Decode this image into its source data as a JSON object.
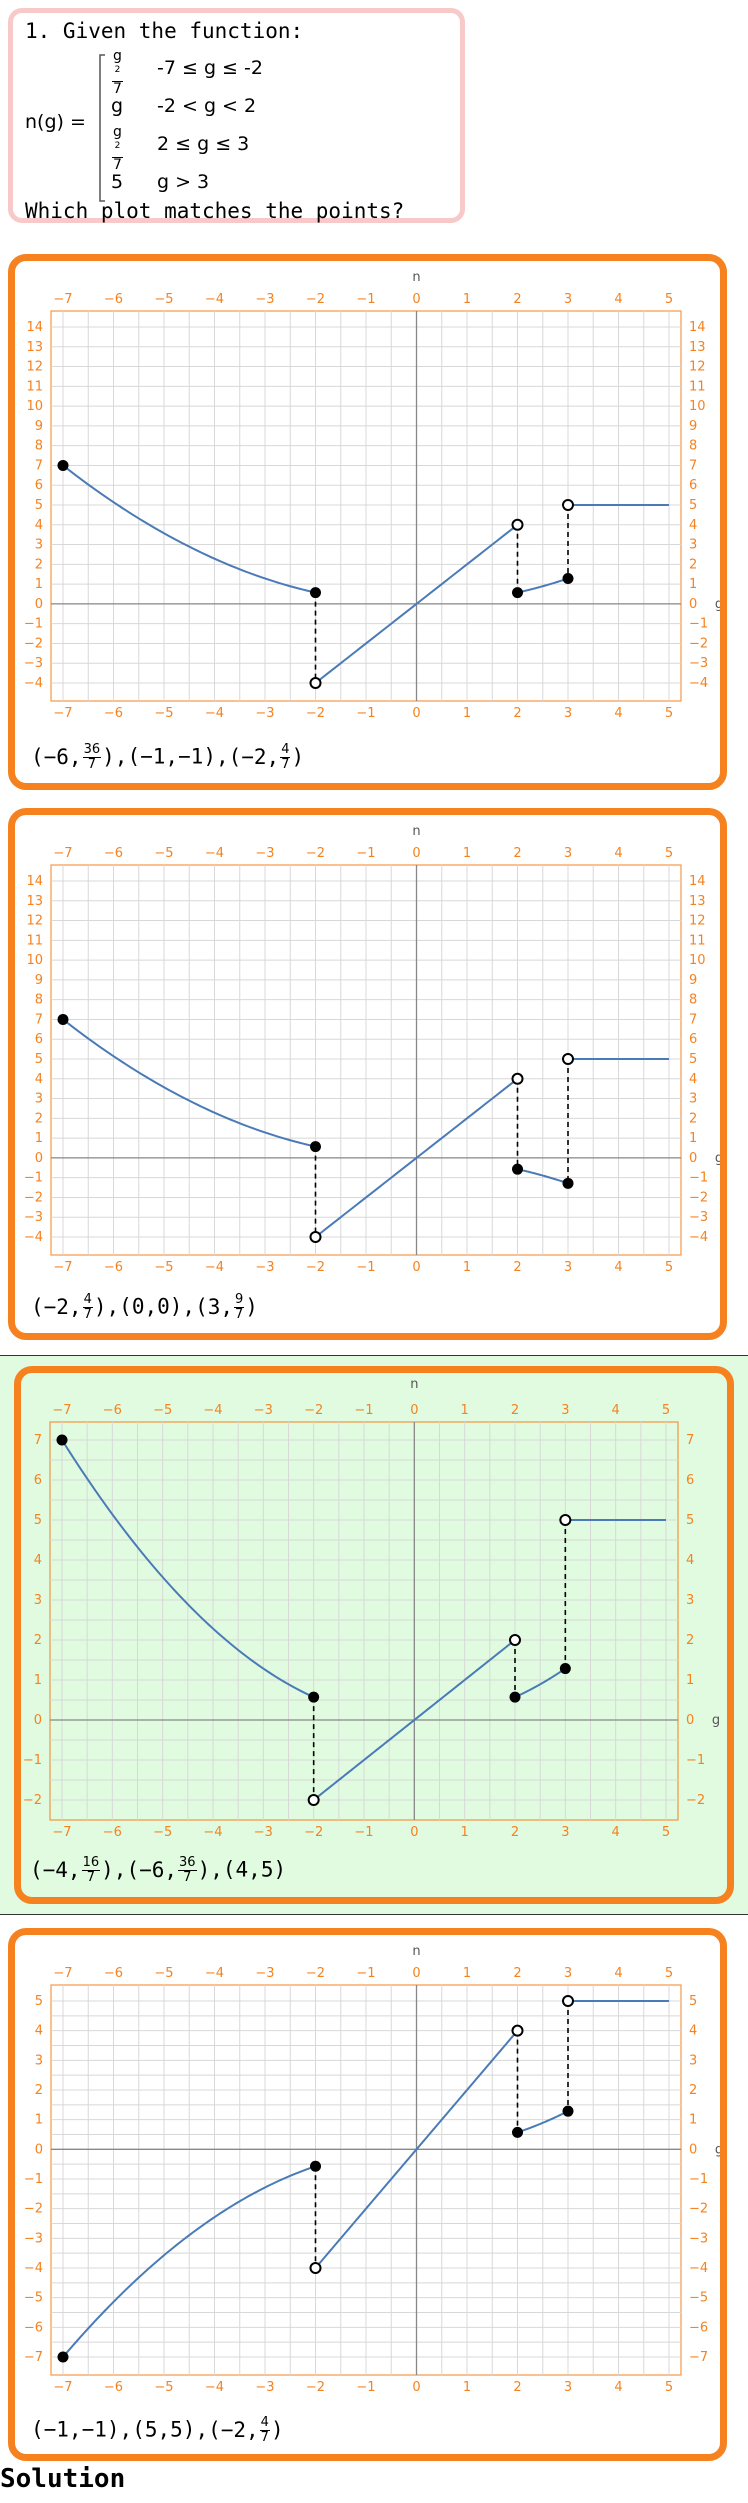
{
  "question": {
    "intro": "1. Given the function:",
    "func_name": "n(g) =",
    "cases": [
      {
        "expr_num": "g",
        "expr_sup": "2",
        "expr_den": "7",
        "cond": "-7 ≤ g ≤ -2"
      },
      {
        "expr": "g",
        "cond": "-2 < g < 2"
      },
      {
        "expr_num": "g",
        "expr_sup": "2",
        "expr_den": "7",
        "cond": "2 ≤ g ≤ 3"
      },
      {
        "expr": "5",
        "cond": "g > 3"
      }
    ],
    "prompt": "Which plot matches the points?"
  },
  "axis_labels": {
    "x": "g",
    "y": "n"
  },
  "solution_label": "Solution",
  "options": [
    {
      "correct": false,
      "points": [
        {
          "x": "-6",
          "num": "36",
          "den": "7"
        },
        {
          "x": "-1",
          "y": "-1"
        },
        {
          "x": "-2",
          "num": "4",
          "den": "7"
        }
      ],
      "chart_data": {
        "type": "line",
        "xlim": [
          -7,
          5
        ],
        "ylim": [
          -4,
          14
        ],
        "xticks": [
          -7,
          -6,
          -5,
          -4,
          -3,
          -2,
          -1,
          0,
          1,
          2,
          3,
          4,
          5
        ],
        "yticks": [
          -4,
          -3,
          -2,
          -1,
          0,
          1,
          2,
          3,
          4,
          5,
          6,
          7,
          8,
          9,
          10,
          11,
          12,
          13,
          14
        ],
        "segments": [
          {
            "f": "x^2/7",
            "from": -7,
            "to": -2
          },
          {
            "f": "2x",
            "from": -2,
            "to": 2
          },
          {
            "f": "x^2/7",
            "from": 2,
            "to": 3
          },
          {
            "f": "5",
            "from": 3,
            "to": 5
          }
        ],
        "closed_points": [
          [
            -7,
            7
          ],
          [
            -2,
            0.571
          ],
          [
            2,
            0.571
          ],
          [
            3,
            1.286
          ]
        ],
        "open_points": [
          [
            -2,
            -4
          ],
          [
            2,
            4
          ],
          [
            3,
            5
          ]
        ],
        "dashed": [
          [
            -2,
            0.571,
            -4
          ],
          [
            2,
            4,
            0.571
          ],
          [
            3,
            5,
            1.286
          ]
        ]
      }
    },
    {
      "correct": false,
      "points": [
        {
          "x": "-2",
          "num": "4",
          "den": "7"
        },
        {
          "x": "0",
          "y": "0"
        },
        {
          "x": "3",
          "num": "9",
          "den": "7"
        }
      ],
      "chart_data": {
        "type": "line",
        "xlim": [
          -7,
          5
        ],
        "ylim": [
          -4,
          14
        ],
        "xticks": [
          -7,
          -6,
          -5,
          -4,
          -3,
          -2,
          -1,
          0,
          1,
          2,
          3,
          4,
          5
        ],
        "yticks": [
          -4,
          -3,
          -2,
          -1,
          0,
          1,
          2,
          3,
          4,
          5,
          6,
          7,
          8,
          9,
          10,
          11,
          12,
          13,
          14
        ],
        "segments": [
          {
            "f": "x^2/7",
            "from": -7,
            "to": -2
          },
          {
            "f": "2x",
            "from": -2,
            "to": 2
          },
          {
            "f": "-x^2/7",
            "from": 2,
            "to": 3
          },
          {
            "f": "5",
            "from": 3,
            "to": 5
          }
        ],
        "closed_points": [
          [
            -7,
            7
          ],
          [
            -2,
            0.571
          ],
          [
            2,
            -0.571
          ],
          [
            3,
            -1.286
          ]
        ],
        "open_points": [
          [
            -2,
            -4
          ],
          [
            2,
            4
          ],
          [
            3,
            5
          ]
        ],
        "dashed": [
          [
            -2,
            0.571,
            -4
          ],
          [
            2,
            4,
            -0.571
          ],
          [
            3,
            5,
            -1.286
          ]
        ]
      }
    },
    {
      "correct": true,
      "points": [
        {
          "x": "-4",
          "num": "16",
          "den": "7"
        },
        {
          "x": "-6",
          "num": "36",
          "den": "7"
        },
        {
          "x": "4",
          "y": "5"
        }
      ],
      "chart_data": {
        "type": "line",
        "xlim": [
          -7,
          5
        ],
        "ylim": [
          -2,
          7
        ],
        "xticks": [
          -7,
          -6,
          -5,
          -4,
          -3,
          -2,
          -1,
          0,
          1,
          2,
          3,
          4,
          5
        ],
        "yticks": [
          -2,
          -1,
          0,
          1,
          2,
          3,
          4,
          5,
          6,
          7
        ],
        "segments": [
          {
            "f": "x^2/7",
            "from": -7,
            "to": -2
          },
          {
            "f": "x",
            "from": -2,
            "to": 2
          },
          {
            "f": "x^2/7",
            "from": 2,
            "to": 3
          },
          {
            "f": "5",
            "from": 3,
            "to": 5
          }
        ],
        "closed_points": [
          [
            -7,
            7
          ],
          [
            -2,
            0.571
          ],
          [
            2,
            0.571
          ],
          [
            3,
            1.286
          ]
        ],
        "open_points": [
          [
            -2,
            -2
          ],
          [
            2,
            2
          ],
          [
            3,
            5
          ]
        ],
        "dashed": [
          [
            -2,
            0.571,
            -2
          ],
          [
            2,
            2,
            0.571
          ],
          [
            3,
            5,
            1.286
          ]
        ]
      }
    },
    {
      "correct": false,
      "points": [
        {
          "x": "-1",
          "y": "-1"
        },
        {
          "x": "5",
          "y": "5"
        },
        {
          "x": "-2",
          "num": "4",
          "den": "7"
        }
      ],
      "chart_data": {
        "type": "line",
        "xlim": [
          -7,
          5
        ],
        "ylim": [
          -7,
          5
        ],
        "xticks": [
          -7,
          -6,
          -5,
          -4,
          -3,
          -2,
          -1,
          0,
          1,
          2,
          3,
          4,
          5
        ],
        "yticks": [
          -7,
          -6,
          -5,
          -4,
          -3,
          -2,
          -1,
          0,
          1,
          2,
          3,
          4,
          5
        ],
        "segments": [
          {
            "f": "-x^2/7",
            "from": -7,
            "to": -2
          },
          {
            "f": "2x",
            "from": -2,
            "to": 2
          },
          {
            "f": "x^2/7",
            "from": 2,
            "to": 3
          },
          {
            "f": "5",
            "from": 3,
            "to": 5
          }
        ],
        "closed_points": [
          [
            -7,
            -7
          ],
          [
            -2,
            -0.571
          ],
          [
            2,
            0.571
          ],
          [
            3,
            1.286
          ]
        ],
        "open_points": [
          [
            -2,
            -4
          ],
          [
            2,
            4
          ],
          [
            3,
            5
          ]
        ],
        "dashed": [
          [
            -2,
            -0.571,
            -4
          ],
          [
            2,
            4,
            0.571
          ],
          [
            3,
            5,
            1.286
          ]
        ]
      }
    }
  ]
}
